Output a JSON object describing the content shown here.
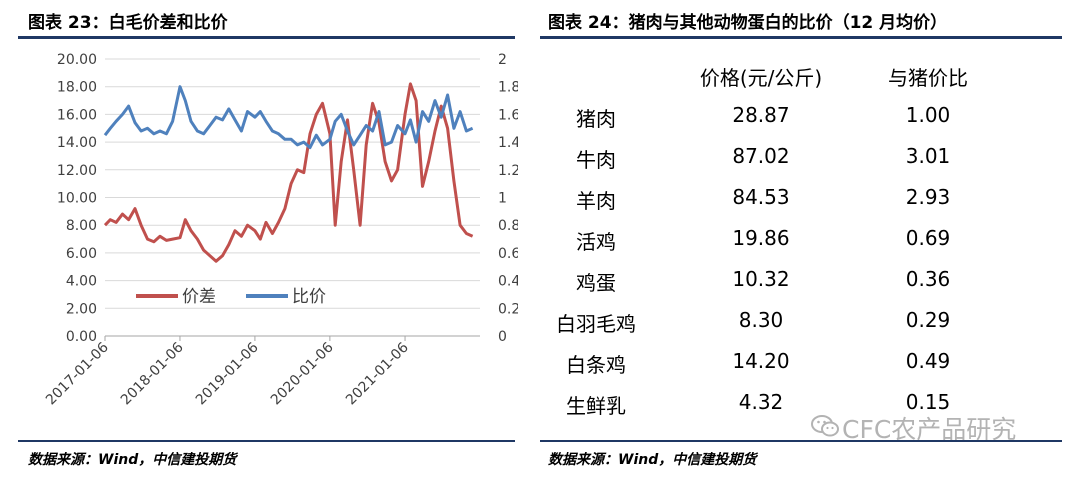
{
  "left": {
    "title": "图表 23：白毛价差和比价",
    "source": "数据来源：Wind，中信建投期货"
  },
  "right": {
    "title": "图表 24：猪肉与其他动物蛋白的比价（12 月均价）",
    "source": "数据来源：Wind，中信建投期货"
  },
  "watermark": "CFC农产品研究",
  "colors": {
    "spread": "#c0504d",
    "ratio": "#4f81bd",
    "rule": "#1f3864"
  },
  "chart_data": [
    {
      "type": "line",
      "title": "",
      "x_ticks": [
        "2017-01-06",
        "2018-01-06",
        "2019-01-06",
        "2020-01-06",
        "2021-01-06"
      ],
      "x_range": [
        "2017-01-06",
        "2022-01-06"
      ],
      "y_left": {
        "min": 0,
        "max": 20,
        "ticks": [
          "0.00",
          "2.00",
          "4.00",
          "6.00",
          "8.00",
          "10.00",
          "12.00",
          "14.00",
          "16.00",
          "18.00",
          "20.00"
        ]
      },
      "y_right": {
        "min": 0,
        "max": 2,
        "ticks": [
          "0",
          "0.2",
          "0.4",
          "0.6",
          "0.8",
          "1",
          "1.2",
          "1.4",
          "1.6",
          "1.8",
          "2"
        ]
      },
      "legend": {
        "placement": "inside-bottom-left"
      },
      "series": [
        {
          "name": "价差",
          "axis": "left",
          "x": [
            "2017-01-06",
            "2017-02-01",
            "2017-03-01",
            "2017-04-01",
            "2017-05-01",
            "2017-06-01",
            "2017-07-01",
            "2017-08-01",
            "2017-09-01",
            "2017-10-01",
            "2017-11-01",
            "2017-12-01",
            "2018-01-06",
            "2018-02-01",
            "2018-03-01",
            "2018-04-01",
            "2018-05-01",
            "2018-06-01",
            "2018-07-01",
            "2018-08-01",
            "2018-09-01",
            "2018-10-01",
            "2018-11-01",
            "2018-12-01",
            "2019-01-06",
            "2019-02-01",
            "2019-03-01",
            "2019-04-01",
            "2019-05-01",
            "2019-06-01",
            "2019-07-01",
            "2019-08-01",
            "2019-09-01",
            "2019-10-01",
            "2019-11-01",
            "2019-12-01",
            "2020-01-06",
            "2020-02-01",
            "2020-03-01",
            "2020-04-01",
            "2020-05-01",
            "2020-06-01",
            "2020-07-01",
            "2020-08-01",
            "2020-09-01",
            "2020-10-01",
            "2020-11-01",
            "2020-12-01",
            "2021-01-06",
            "2021-02-01",
            "2021-03-01",
            "2021-04-01",
            "2021-05-01",
            "2021-06-01",
            "2021-07-01",
            "2021-08-01",
            "2021-09-01",
            "2021-10-01",
            "2021-11-01",
            "2021-12-01"
          ],
          "values": [
            8.0,
            8.4,
            8.2,
            8.8,
            8.4,
            9.2,
            8.0,
            7.0,
            6.8,
            7.2,
            6.9,
            7.0,
            7.1,
            8.4,
            7.6,
            7.0,
            6.2,
            5.8,
            5.4,
            5.8,
            6.6,
            7.6,
            7.2,
            8.0,
            7.6,
            7.0,
            8.2,
            7.4,
            8.2,
            9.2,
            11.0,
            12.0,
            11.8,
            14.6,
            16.0,
            16.8,
            14.6,
            8.0,
            12.6,
            15.6,
            12.0,
            8.0,
            13.8,
            16.8,
            15.4,
            12.6,
            11.2,
            12.0,
            16.0,
            18.2,
            17.0,
            10.8,
            12.6,
            14.8,
            16.6,
            15.0,
            11.2,
            8.0,
            7.4,
            7.2
          ]
        },
        {
          "name": "比价",
          "axis": "right",
          "x": [
            "2017-01-06",
            "2017-02-01",
            "2017-03-01",
            "2017-04-01",
            "2017-05-01",
            "2017-06-01",
            "2017-07-01",
            "2017-08-01",
            "2017-09-01",
            "2017-10-01",
            "2017-11-01",
            "2017-12-01",
            "2018-01-06",
            "2018-02-01",
            "2018-03-01",
            "2018-04-01",
            "2018-05-01",
            "2018-06-01",
            "2018-07-01",
            "2018-08-01",
            "2018-09-01",
            "2018-10-01",
            "2018-11-01",
            "2018-12-01",
            "2019-01-06",
            "2019-02-01",
            "2019-03-01",
            "2019-04-01",
            "2019-05-01",
            "2019-06-01",
            "2019-07-01",
            "2019-08-01",
            "2019-09-01",
            "2019-10-01",
            "2019-11-01",
            "2019-12-01",
            "2020-01-06",
            "2020-02-01",
            "2020-03-01",
            "2020-04-01",
            "2020-05-01",
            "2020-06-01",
            "2020-07-01",
            "2020-08-01",
            "2020-09-01",
            "2020-10-01",
            "2020-11-01",
            "2020-12-01",
            "2021-01-06",
            "2021-02-01",
            "2021-03-01",
            "2021-04-01",
            "2021-05-01",
            "2021-06-01",
            "2021-07-01",
            "2021-08-01",
            "2021-09-01",
            "2021-10-01",
            "2021-11-01",
            "2021-12-01"
          ],
          "values": [
            1.45,
            1.5,
            1.55,
            1.6,
            1.66,
            1.54,
            1.48,
            1.5,
            1.46,
            1.48,
            1.46,
            1.55,
            1.8,
            1.7,
            1.55,
            1.48,
            1.46,
            1.52,
            1.58,
            1.56,
            1.64,
            1.56,
            1.48,
            1.62,
            1.58,
            1.62,
            1.55,
            1.48,
            1.46,
            1.42,
            1.42,
            1.38,
            1.4,
            1.36,
            1.45,
            1.38,
            1.42,
            1.55,
            1.6,
            1.48,
            1.38,
            1.45,
            1.52,
            1.48,
            1.62,
            1.38,
            1.4,
            1.52,
            1.46,
            1.56,
            1.4,
            1.62,
            1.55,
            1.7,
            1.58,
            1.74,
            1.5,
            1.62,
            1.48,
            1.5
          ]
        }
      ]
    },
    {
      "type": "table",
      "columns": [
        "",
        "价格(元/公斤)",
        "与猪价比"
      ],
      "rows": [
        [
          "猪肉",
          "28.87",
          "1.00"
        ],
        [
          "牛肉",
          "87.02",
          "3.01"
        ],
        [
          "羊肉",
          "84.53",
          "2.93"
        ],
        [
          "活鸡",
          "19.86",
          "0.69"
        ],
        [
          "鸡蛋",
          "10.32",
          "0.36"
        ],
        [
          "白羽毛鸡",
          "8.30",
          "0.29"
        ],
        [
          "白条鸡",
          "14.20",
          "0.49"
        ],
        [
          "生鲜乳",
          "4.32",
          "0.15"
        ]
      ]
    }
  ]
}
